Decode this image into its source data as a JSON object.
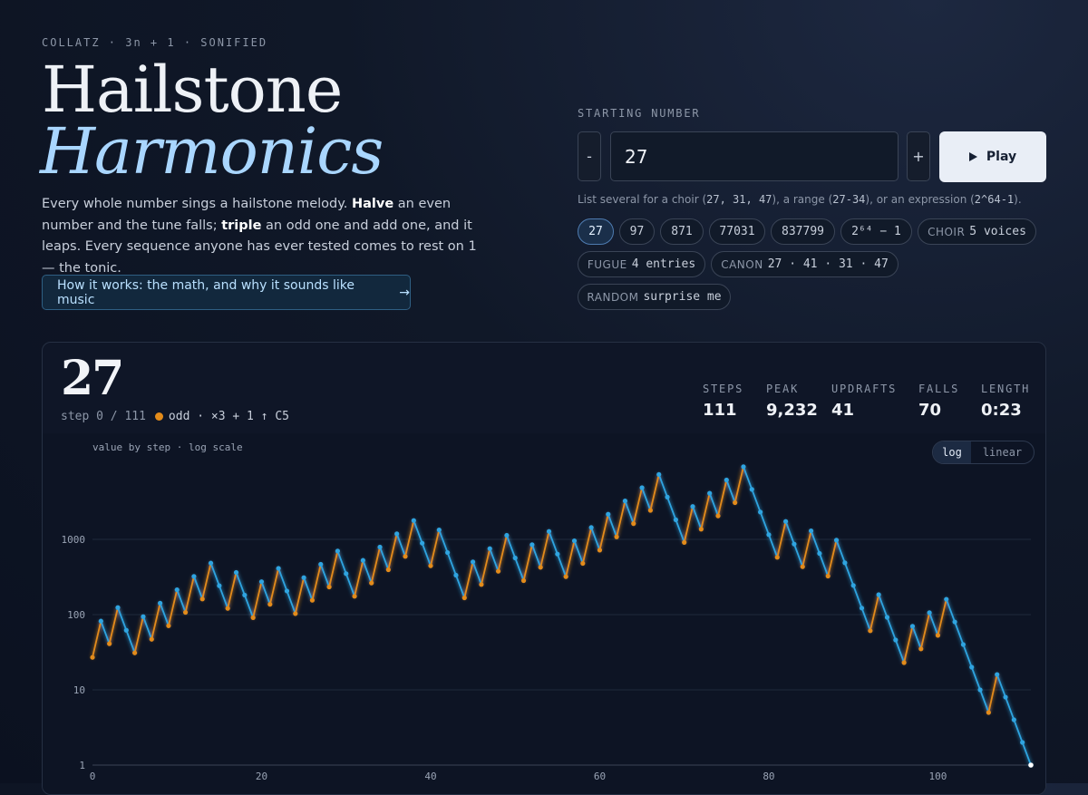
{
  "header": {
    "eyebrow": "COLLATZ · 3n + 1 · SONIFIED",
    "title_line1": "Hailstone",
    "title_line2": "Harmonics",
    "intro": {
      "p1": "Every whole number sings a hailstone melody. ",
      "b1": "Halve",
      "p2": " an even number and the tune falls; ",
      "b2": "triple",
      "p3": " an odd one and add one, and it leaps. Every sequence anyone has ever tested comes to rest on 1 — the tonic."
    },
    "how_it_works_label": "How it works: the math, and why it sounds like music",
    "how_it_works_arrow": "→"
  },
  "controls": {
    "label": "STARTING NUMBER",
    "decrement_label": "-",
    "value": "27",
    "increment_label": "+",
    "play_label": "Play",
    "hint": {
      "t1": "List several for a choir (",
      "c1": "27, 31, 47",
      "t2": "), a range (",
      "c2": "27-34",
      "t3": "), or an expression (",
      "c3": "2^64-1",
      "t4": ")."
    },
    "presets": [
      {
        "tag": "",
        "label": "27",
        "active": true
      },
      {
        "tag": "",
        "label": "97"
      },
      {
        "tag": "",
        "label": "871"
      },
      {
        "tag": "",
        "label": "77031"
      },
      {
        "tag": "",
        "label": "837799"
      },
      {
        "tag": "",
        "label": "2⁶⁴ − 1"
      },
      {
        "tag": "CHOIR",
        "label": "5 voices"
      },
      {
        "tag": "FUGUE",
        "label": "4 entries"
      },
      {
        "tag": "CANON",
        "label": "27 · 41 · 31 · 47"
      },
      {
        "tag": "RANDOM",
        "label": "surprise me"
      }
    ]
  },
  "panel": {
    "current_number": "27",
    "step_text": "step 0 / 111",
    "step_detail": "odd · ×3 + 1 ↑  C5",
    "stats": [
      {
        "label": "STEPS",
        "value": "111"
      },
      {
        "label": "PEAK",
        "value": "9,232"
      },
      {
        "label": "UPDRAFTS",
        "value": "41"
      },
      {
        "label": "FALLS",
        "value": "70"
      },
      {
        "label": "LENGTH",
        "value": "0:23"
      }
    ],
    "chart_subtitle": "value by step · log scale",
    "scale_options": {
      "log": "log",
      "linear": "linear",
      "selected": "log"
    }
  },
  "colors": {
    "odd_step": "#e38b1a",
    "even_step": "#2fa4e0",
    "accent": "#a9d6ff"
  },
  "chart_data": {
    "type": "line",
    "title": "value by step · log scale",
    "xlabel": "",
    "ylabel": "",
    "yscale": "log",
    "ylim": [
      1,
      10000
    ],
    "xlim": [
      0,
      111
    ],
    "x_ticks": [
      "0",
      "20",
      "40",
      "60",
      "80",
      "100"
    ],
    "y_ticks": [
      "1",
      "10",
      "100",
      "1000"
    ],
    "grid": true,
    "series": [
      {
        "values": [
          27,
          82,
          41,
          124,
          62,
          31,
          94,
          47,
          142,
          71,
          214,
          107,
          322,
          161,
          484,
          242,
          121,
          364,
          182,
          91,
          274,
          137,
          412,
          206,
          103,
          310,
          155,
          466,
          233,
          700,
          350,
          175,
          526,
          263,
          790,
          395,
          1186,
          593,
          1780,
          890,
          445,
          1336,
          668,
          334,
          167,
          502,
          251,
          754,
          377,
          1132,
          566,
          283,
          850,
          425,
          1276,
          638,
          319,
          958,
          479,
          1438,
          719,
          2158,
          1079,
          3238,
          1619,
          4858,
          2429,
          7288,
          3644,
          1822,
          911,
          2734,
          1367,
          4102,
          2051,
          6154,
          3077,
          9232,
          4616,
          2308,
          1154,
          577,
          1732,
          866,
          433,
          1300,
          650,
          325,
          976,
          488,
          244,
          122,
          61,
          184,
          92,
          46,
          23,
          70,
          35,
          106,
          53,
          160,
          80,
          40,
          20,
          10,
          5,
          16,
          8,
          4,
          2,
          1
        ]
      }
    ]
  }
}
